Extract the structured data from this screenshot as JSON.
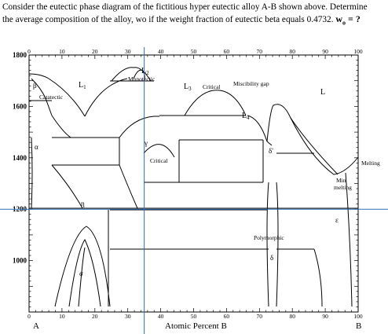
{
  "question": {
    "line1": "Consider the eutectic phase diagram of the fictitious hyper eutectic alloy A-B shown above. Determine",
    "line2_prefix": "the average composition of the alloy, wo if the weight fraction of eutectic beta equals 0.4732.",
    "answer_label": "w",
    "answer_subscript": "o",
    "answer_suffix": " = ?"
  },
  "axes": {
    "x_title": "Atomic Percent B",
    "left_component": "A",
    "right_component": "B",
    "x_ticks_top": [
      "0",
      "10",
      "20",
      "30",
      "40",
      "50",
      "60",
      "70",
      "80",
      "90",
      "100"
    ],
    "x_ticks_bottom": [
      "0",
      "10",
      "20",
      "30",
      "40",
      "50",
      "60",
      "70",
      "80",
      "90",
      "100"
    ],
    "y_ticks": [
      "1800",
      "1600",
      "1400",
      "1200",
      "1000"
    ],
    "x_range": [
      0,
      100
    ],
    "y_range": [
      800,
      1800
    ]
  },
  "labels": {
    "L1": "L",
    "L1_sub": "1",
    "L2": "L",
    "L2_sub": "2",
    "L3": "L",
    "L3_sub": "3",
    "L4": "L",
    "L4_sub": "4",
    "L": "L",
    "beta": "β",
    "catatectic": "Catatectic",
    "monotectic": "Monotectic",
    "critical_top": "Critical",
    "miscibility_gap": "Miscibility gap",
    "alpha": "α",
    "gamma": "γ",
    "critical_mid": "Critical",
    "delta_prime": "δ'",
    "melting": "Melting",
    "min_melting_1": "Min",
    "min_melting_2": "melting",
    "eta": "η",
    "epsilon": "ε",
    "polymorphic": "Polymorphic",
    "delta": "δ",
    "sigma": "σ"
  },
  "cursor": {
    "x_percent": 35,
    "y_temperature": 1200
  }
}
